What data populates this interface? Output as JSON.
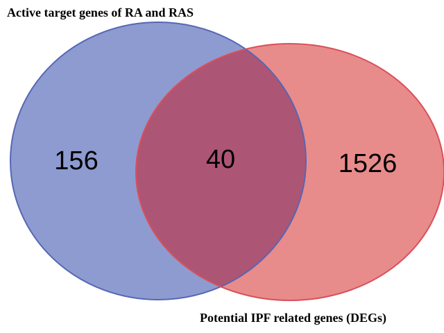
{
  "chart_data": {
    "type": "venn",
    "sets": [
      {
        "name": "Active target genes of RA and RAS",
        "color": "#8e9bd0",
        "value": 156
      },
      {
        "name": "Potential IPF related genes (DEGs)",
        "color": "#e88b8b",
        "value": 1526
      }
    ],
    "intersection": {
      "value": 40,
      "color": "#ad5575"
    }
  }
}
